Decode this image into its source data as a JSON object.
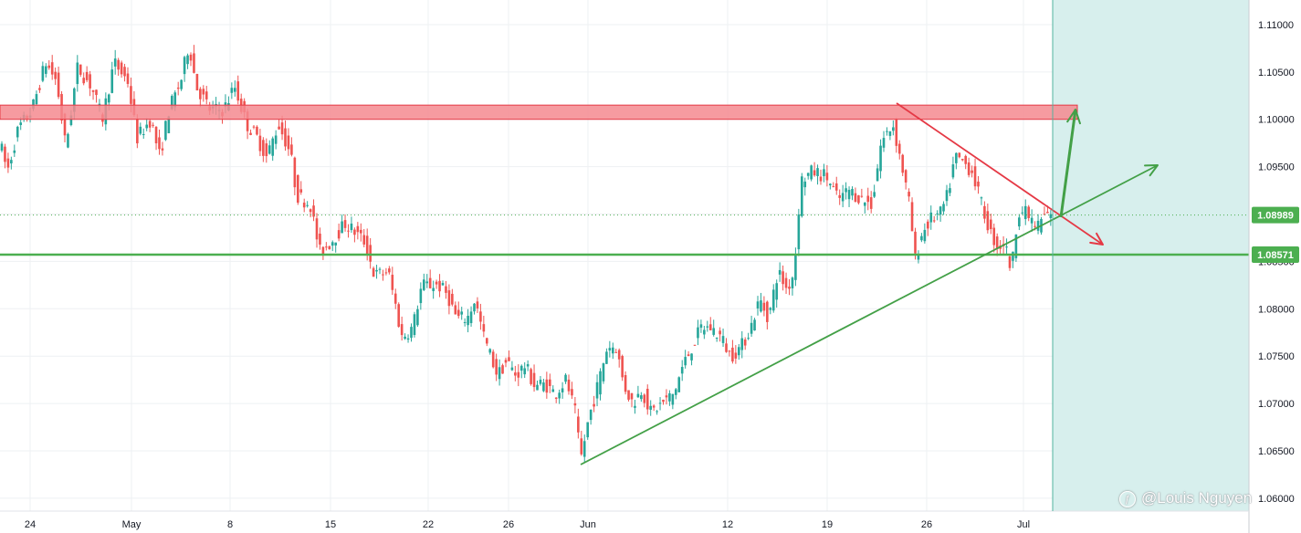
{
  "chart_data": {
    "type": "candlestick",
    "instrument_note": "",
    "y_axis": {
      "position": "right",
      "ticks": [
        "1.11000",
        "1.10500",
        "1.10000",
        "1.09500",
        "1.09000",
        "1.08500",
        "1.08000",
        "1.07500",
        "1.07000",
        "1.06500",
        "1.06000"
      ],
      "range": [
        1.0597,
        1.1125
      ]
    },
    "x_axis": {
      "ticks": [
        {
          "label": "24",
          "date": "2023-04-24"
        },
        {
          "label": "May",
          "date": "2023-05-01"
        },
        {
          "label": "8",
          "date": "2023-05-08"
        },
        {
          "label": "15",
          "date": "2023-05-15"
        },
        {
          "label": "22",
          "date": "2023-05-22"
        },
        {
          "label": "26",
          "date": "2023-05-26"
        },
        {
          "label": "Jun",
          "date": "2023-06-01"
        },
        {
          "label": "12",
          "date": "2023-06-12"
        },
        {
          "label": "19",
          "date": "2023-06-19"
        },
        {
          "label": "26",
          "date": "2023-06-26"
        },
        {
          "label": "Jul",
          "date": "2023-07-03"
        }
      ]
    },
    "price_path": [
      [
        0,
        1.0975
      ],
      [
        8,
        1.0945
      ],
      [
        20,
        1.099
      ],
      [
        35,
        1.101
      ],
      [
        50,
        1.106
      ],
      [
        62,
        1.104
      ],
      [
        72,
        1.097
      ],
      [
        85,
        1.1055
      ],
      [
        100,
        1.1035
      ],
      [
        112,
        1.1
      ],
      [
        125,
        1.106
      ],
      [
        140,
        1.104
      ],
      [
        150,
        1.098
      ],
      [
        165,
        1.1
      ],
      [
        175,
        1.096
      ],
      [
        185,
        1.101
      ],
      [
        198,
        1.104
      ],
      [
        207,
        1.108
      ],
      [
        215,
        1.1035
      ],
      [
        230,
        1.101
      ],
      [
        245,
        1.101
      ],
      [
        257,
        1.1035
      ],
      [
        270,
        1.0995
      ],
      [
        282,
        1.098
      ],
      [
        292,
        1.096
      ],
      [
        305,
        1.0995
      ],
      [
        318,
        1.0965
      ],
      [
        325,
        1.092
      ],
      [
        340,
        1.091
      ],
      [
        350,
        1.086
      ],
      [
        362,
        1.087
      ],
      [
        378,
        1.089
      ],
      [
        390,
        1.088
      ],
      [
        400,
        1.087
      ],
      [
        410,
        1.0835
      ],
      [
        425,
        1.084
      ],
      [
        433,
        1.0805
      ],
      [
        440,
        1.077
      ],
      [
        452,
        1.078
      ],
      [
        462,
        1.0825
      ],
      [
        480,
        1.0825
      ],
      [
        490,
        1.0815
      ],
      [
        500,
        1.079
      ],
      [
        512,
        1.079
      ],
      [
        520,
        1.081
      ],
      [
        530,
        1.077
      ],
      [
        545,
        1.073
      ],
      [
        555,
        1.0745
      ],
      [
        565,
        1.073
      ],
      [
        575,
        1.074
      ],
      [
        585,
        1.072
      ],
      [
        598,
        1.072
      ],
      [
        608,
        1.071
      ],
      [
        620,
        1.0725
      ],
      [
        630,
        1.069
      ],
      [
        636,
        1.064
      ],
      [
        645,
        1.0685
      ],
      [
        655,
        1.072
      ],
      [
        665,
        1.076
      ],
      [
        675,
        1.076
      ],
      [
        683,
        1.072
      ],
      [
        693,
        1.07
      ],
      [
        703,
        1.0715
      ],
      [
        713,
        1.069
      ],
      [
        725,
        1.07
      ],
      [
        738,
        1.071
      ],
      [
        748,
        1.074
      ],
      [
        758,
        1.076
      ],
      [
        768,
        1.078
      ],
      [
        778,
        1.078
      ],
      [
        790,
        1.077
      ],
      [
        800,
        1.075
      ],
      [
        812,
        1.076
      ],
      [
        822,
        1.078
      ],
      [
        832,
        1.081
      ],
      [
        842,
        1.079
      ],
      [
        852,
        1.084
      ],
      [
        862,
        1.082
      ],
      [
        870,
        1.084
      ],
      [
        877,
        1.0935
      ],
      [
        890,
        1.0945
      ],
      [
        905,
        1.094
      ],
      [
        918,
        1.0915
      ],
      [
        930,
        1.0925
      ],
      [
        945,
        1.0915
      ],
      [
        955,
        1.091
      ],
      [
        965,
        1.0975
      ],
      [
        978,
        1.0995
      ],
      [
        988,
        1.095
      ],
      [
        997,
        1.0905
      ],
      [
        1002,
        1.085
      ],
      [
        1010,
        1.088
      ],
      [
        1020,
        1.0895
      ],
      [
        1030,
        1.09
      ],
      [
        1038,
        1.092
      ],
      [
        1046,
        1.096
      ],
      [
        1055,
        1.0955
      ],
      [
        1065,
        1.0945
      ],
      [
        1075,
        1.091
      ],
      [
        1085,
        1.088
      ],
      [
        1093,
        1.0865
      ],
      [
        1100,
        1.087
      ],
      [
        1108,
        1.084
      ],
      [
        1115,
        1.0905
      ],
      [
        1125,
        1.09
      ],
      [
        1135,
        1.0885
      ],
      [
        1145,
        1.09
      ],
      [
        1152,
        1.0895
      ]
    ],
    "last_price_label": "1.08989",
    "last_price": 1.08989,
    "support_label": "1.08571",
    "support_level": 1.08571,
    "resistance_zone": [
      1.1,
      1.1015
    ],
    "watermark": "@Louis Nguyen",
    "colors": {
      "up_candle": "#26a69a",
      "down_candle": "#ef5350",
      "support_line": "#4caf50",
      "trend_line": "#43a047",
      "resistance_fill": "#f48a8f",
      "resistance_stroke": "#e53945",
      "red_arrow": "#e53945",
      "green_arrow": "#43a047",
      "projection_zone": "#d7efed",
      "projection_border": "#52b39f",
      "grid": "#eef0f3",
      "last_price_badge": "#4caf50",
      "support_badge": "#4caf50"
    }
  }
}
